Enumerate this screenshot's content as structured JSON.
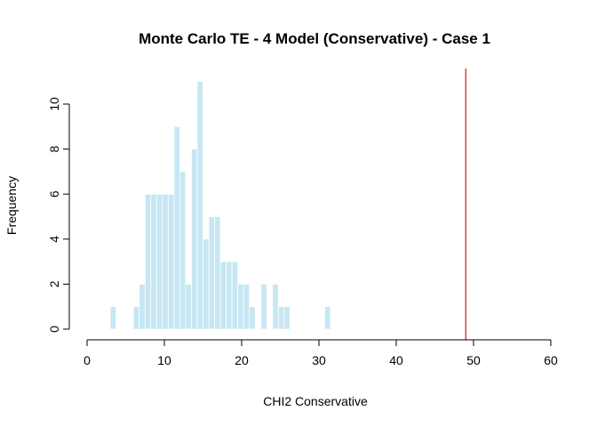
{
  "chart_data": {
    "type": "bar",
    "title": "Monte Carlo TE - 4 Model (Conservative) - Case 1",
    "xlabel": "CHI2 Conservative",
    "ylabel": "Frequency",
    "xlim": [
      0,
      60
    ],
    "ylim": [
      0,
      11
    ],
    "x_ticks": [
      "0",
      "10",
      "20",
      "30",
      "40",
      "50",
      "60"
    ],
    "y_ticks": [
      "0",
      "2",
      "4",
      "6",
      "8",
      "10"
    ],
    "bin_width": 0.75,
    "bins": [
      {
        "x0": 3.0,
        "count": 1
      },
      {
        "x0": 6.0,
        "count": 1
      },
      {
        "x0": 6.75,
        "count": 2
      },
      {
        "x0": 7.5,
        "count": 6
      },
      {
        "x0": 8.25,
        "count": 6
      },
      {
        "x0": 9.0,
        "count": 6
      },
      {
        "x0": 9.75,
        "count": 6
      },
      {
        "x0": 10.5,
        "count": 6
      },
      {
        "x0": 11.25,
        "count": 9
      },
      {
        "x0": 12.0,
        "count": 7
      },
      {
        "x0": 12.75,
        "count": 2
      },
      {
        "x0": 13.5,
        "count": 8
      },
      {
        "x0": 14.25,
        "count": 11
      },
      {
        "x0": 15.0,
        "count": 4
      },
      {
        "x0": 15.75,
        "count": 5
      },
      {
        "x0": 16.5,
        "count": 5
      },
      {
        "x0": 17.25,
        "count": 3
      },
      {
        "x0": 18.0,
        "count": 3
      },
      {
        "x0": 18.75,
        "count": 3
      },
      {
        "x0": 19.5,
        "count": 2
      },
      {
        "x0": 20.25,
        "count": 2
      },
      {
        "x0": 21.0,
        "count": 1
      },
      {
        "x0": 22.5,
        "count": 2
      },
      {
        "x0": 24.0,
        "count": 2
      },
      {
        "x0": 24.75,
        "count": 1
      },
      {
        "x0": 25.5,
        "count": 1
      },
      {
        "x0": 30.75,
        "count": 1
      }
    ],
    "vline": {
      "x": 49,
      "color": "#d62728"
    },
    "bar_color": "#c6e7f3"
  }
}
